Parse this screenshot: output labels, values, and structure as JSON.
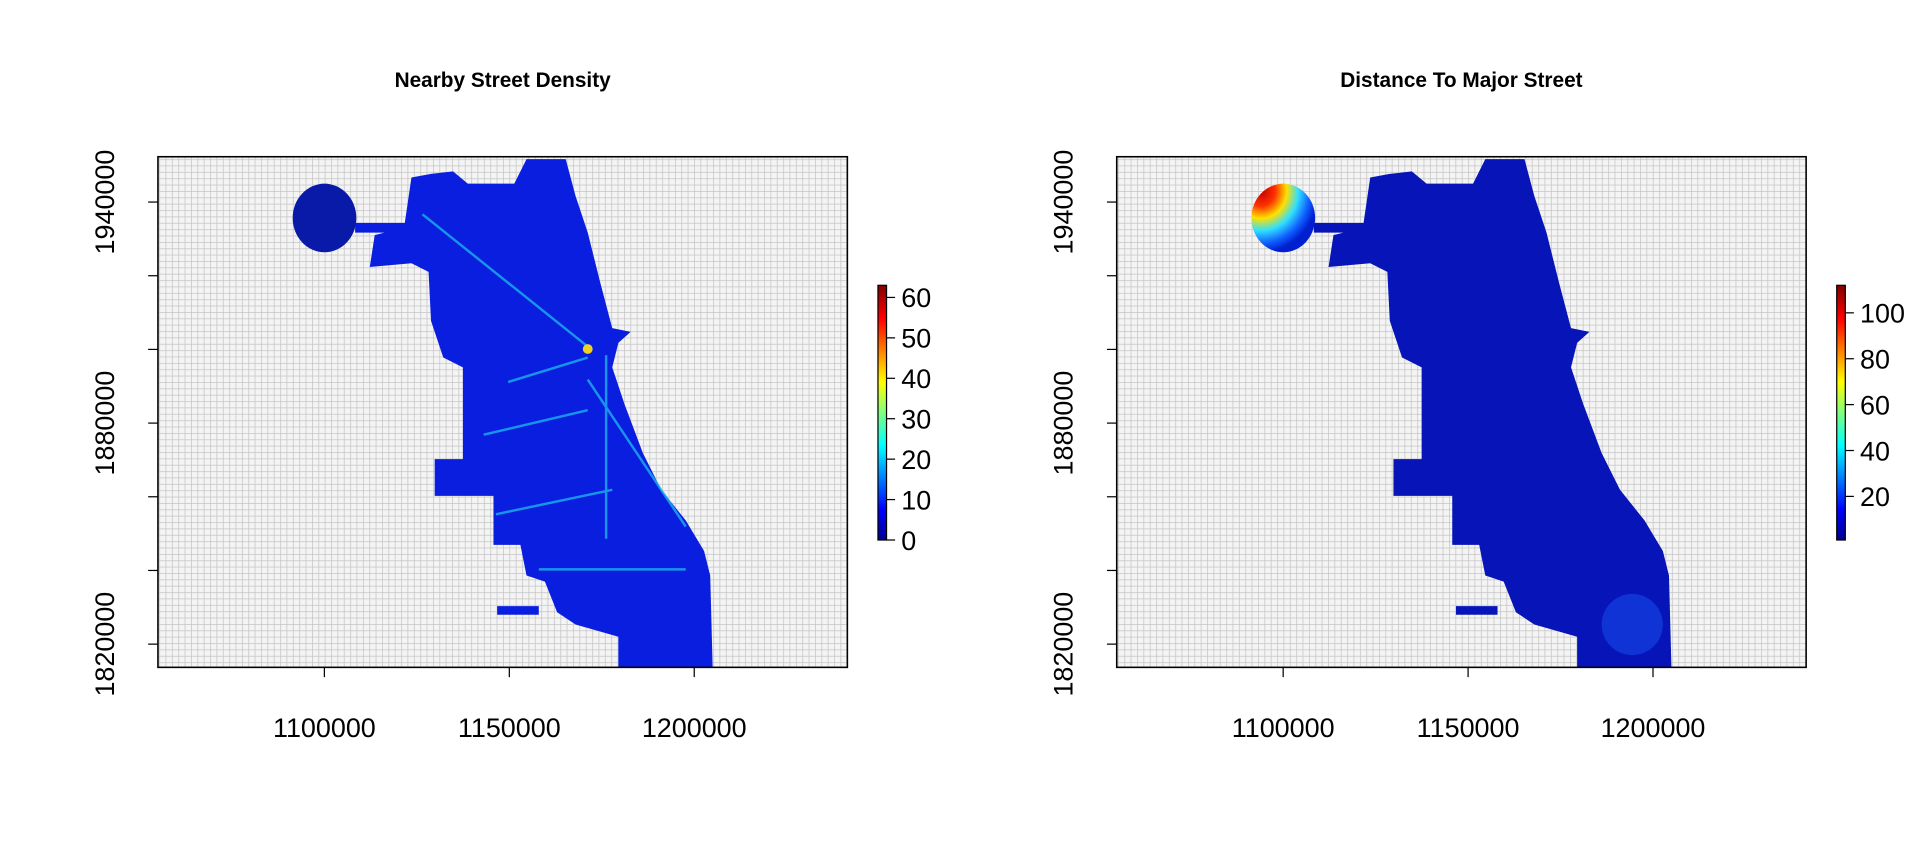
{
  "panels": [
    {
      "title": "Nearby Street Density",
      "xlim": [
        1055000,
        1241400
      ],
      "ylim": [
        1813700,
        1952300
      ],
      "xticks": [
        1100000,
        1150000,
        1200000
      ],
      "yticks": [
        1820000,
        1880000,
        1940000
      ],
      "y_minor_ticks": [
        1840000,
        1860000,
        1900000,
        1920000
      ],
      "colorbar": {
        "lim": [
          0,
          63
        ],
        "ticks": [
          0,
          10,
          20,
          30,
          40,
          50,
          60
        ]
      }
    },
    {
      "title": "Distance To Major Street",
      "xlim": [
        1055000,
        1241400
      ],
      "ylim": [
        1813700,
        1952300
      ],
      "xticks": [
        1100000,
        1150000,
        1200000
      ],
      "yticks": [
        1820000,
        1880000,
        1940000
      ],
      "y_minor_ticks": [
        1840000,
        1860000,
        1900000,
        1920000
      ],
      "colorbar": {
        "lim": [
          1,
          112
        ],
        "ticks": [
          20,
          40,
          60,
          80,
          100
        ]
      }
    }
  ]
}
